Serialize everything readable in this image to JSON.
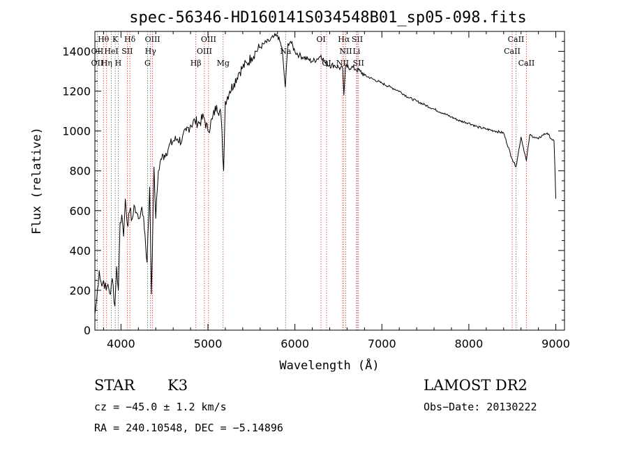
{
  "chart_data": {
    "type": "line",
    "title": "spec-56346-HD160141S034548B01_sp05-098.fits",
    "xlabel": "Wavelength (Å)",
    "ylabel": "Flux (relative)",
    "xlim": [
      3700,
      9100
    ],
    "ylim": [
      0,
      1500
    ],
    "xticks": [
      4000,
      5000,
      6000,
      7000,
      8000,
      9000
    ],
    "yticks": [
      0,
      200,
      400,
      600,
      800,
      1000,
      1200,
      1400
    ],
    "grid": false,
    "series": [
      {
        "x": [
          3700,
          3720,
          3750,
          3780,
          3800,
          3830,
          3850,
          3880,
          3900,
          3930,
          3950,
          3970,
          3990,
          4010,
          4030,
          4050,
          4080,
          4100,
          4130,
          4160,
          4200,
          4230,
          4260,
          4300,
          4330,
          4350,
          4380,
          4400,
          4430,
          4460,
          4500,
          4550,
          4600,
          4650,
          4700,
          4750,
          4800,
          4850,
          4900,
          4950,
          5000,
          5050,
          5100,
          5150,
          5180,
          5200,
          5250,
          5300,
          5350,
          5400,
          5450,
          5500,
          5550,
          5600,
          5650,
          5700,
          5750,
          5800,
          5850,
          5890,
          5920,
          5950,
          6000,
          6050,
          6100,
          6150,
          6200,
          6250,
          6300,
          6350,
          6400,
          6450,
          6500,
          6550,
          6563,
          6580,
          6600,
          6650,
          6700,
          6750,
          6800,
          6900,
          7000,
          7100,
          7200,
          7300,
          7400,
          7500,
          7600,
          7700,
          7800,
          7900,
          8000,
          8100,
          8200,
          8300,
          8400,
          8498,
          8542,
          8600,
          8662,
          8700,
          8750,
          8800,
          8850,
          8900,
          8950,
          8980,
          9000
        ],
        "y": [
          80,
          150,
          300,
          220,
          250,
          200,
          230,
          180,
          260,
          120,
          320,
          200,
          540,
          580,
          470,
          660,
          520,
          600,
          560,
          620,
          560,
          600,
          570,
          340,
          720,
          180,
          820,
          560,
          800,
          860,
          880,
          920,
          950,
          960,
          950,
          1000,
          1030,
          1050,
          1040,
          1070,
          1000,
          1060,
          1130,
          1080,
          800,
          1150,
          1200,
          1240,
          1290,
          1320,
          1340,
          1370,
          1400,
          1420,
          1440,
          1450,
          1470,
          1480,
          1420,
          1220,
          1440,
          1450,
          1400,
          1380,
          1370,
          1360,
          1350,
          1360,
          1380,
          1340,
          1330,
          1330,
          1320,
          1310,
          1180,
          1320,
          1320,
          1320,
          1310,
          1300,
          1280,
          1260,
          1240,
          1220,
          1200,
          1170,
          1150,
          1130,
          1110,
          1090,
          1070,
          1050,
          1040,
          1020,
          1010,
          1000,
          990,
          860,
          820,
          970,
          850,
          980,
          970,
          960,
          980,
          990,
          960,
          950,
          660
        ]
      }
    ],
    "lines": {
      "top_row": [
        {
          "label": "Hθ",
          "x": 3798
        },
        {
          "label": "K",
          "x": 3934
        },
        {
          "label": "Hδ",
          "x": 4102
        },
        {
          "label": "OIII",
          "x": 4363
        },
        {
          "label": "OIII",
          "x": 5007
        },
        {
          "label": "OI",
          "x": 6300
        },
        {
          "label": "Hα",
          "x": 6563
        },
        {
          "label": "SII",
          "x": 6717
        },
        {
          "label": "CaII",
          "x": 8542
        }
      ],
      "mid_row": [
        {
          "label": "OII",
          "x": 3727
        },
        {
          "label": "HeI",
          "x": 3889
        },
        {
          "label": "SII",
          "x": 4072
        },
        {
          "label": "Hγ",
          "x": 4340
        },
        {
          "label": "OIII",
          "x": 4959
        },
        {
          "label": "Na",
          "x": 5893
        },
        {
          "label": "NII",
          "x": 6584
        },
        {
          "label": "Li",
          "x": 6708
        },
        {
          "label": "CaII",
          "x": 8498
        }
      ],
      "low_row": [
        {
          "label": "OII",
          "x": 3727
        },
        {
          "label": "Hη",
          "x": 3835
        },
        {
          "label": "H",
          "x": 3968
        },
        {
          "label": "G",
          "x": 4305
        },
        {
          "label": "Hβ",
          "x": 4861
        },
        {
          "label": "Mg",
          "x": 5175
        },
        {
          "label": "OI",
          "x": 6364
        },
        {
          "label": "NII",
          "x": 6548
        },
        {
          "label": "SII",
          "x": 6731
        },
        {
          "label": "CaII",
          "x": 8662
        }
      ]
    }
  },
  "info": {
    "class": "STAR",
    "subclass": "K3",
    "survey": "LAMOST DR2",
    "cz": "cz = −45.0 ± 1.2 km/s",
    "obsdate": "Obs−Date: 20130222",
    "radec": "RA = 240.10548, DEC =  −5.14896"
  }
}
